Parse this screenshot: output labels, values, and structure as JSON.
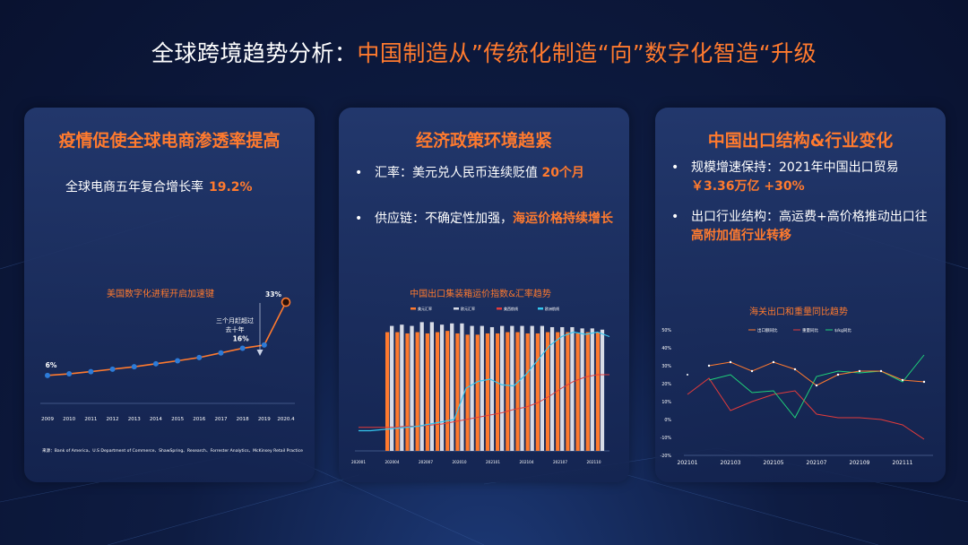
{
  "title": {
    "prefix": "全球跨境趋势分析：",
    "highlight": "中国制造从”传统化制造“向”数字化智造“升级"
  },
  "card1": {
    "heading": "疫情促使全球电商渗透率提高",
    "stat_label": "全球电商五年复合增长率",
    "stat_value": "19.2%",
    "chart_data": {
      "type": "line",
      "title": "美国数字化进程开启加速键",
      "categories": [
        "2009",
        "2010",
        "2011",
        "2012",
        "2013",
        "2014",
        "2015",
        "2016",
        "2017",
        "2018",
        "2019",
        "2020.4"
      ],
      "values": [
        6,
        6.6,
        7.4,
        8.3,
        9.2,
        10.3,
        11.4,
        12.6,
        14.3,
        16,
        17.2,
        33
      ],
      "start_label": "6%",
      "mid_label": "16%",
      "end_label": "33%",
      "annotation": [
        "三个月赶超过",
        "去十年"
      ],
      "source": "来源：Bank of America、U.S Department of Commerce、ShawSpring、Research、Forrester Analytics、McKinsey Retail Practice"
    }
  },
  "card2": {
    "heading": "经济政策环境趋紧",
    "b1_text": "汇率：美元兑人民币连续贬值 ",
    "b1_hl": "20个月",
    "b2_text": "供应链：不确定性加强，",
    "b2_hl": "海运价格持续增长",
    "chart_data": {
      "type": "bar",
      "title": "中国出口集装箱运价指数&汇率趋势",
      "legend": [
        "美元汇率",
        "欧元汇率",
        "美西航线",
        "欧洲航线"
      ],
      "x_ticks": [
        "202001",
        "202004",
        "202007",
        "202010",
        "202101",
        "202104",
        "202107",
        "202110"
      ],
      "bar_a": [
        95,
        95,
        94,
        95,
        94,
        95,
        96,
        94,
        93,
        93,
        94,
        94,
        95,
        95,
        94,
        94,
        95,
        95,
        95,
        94,
        95,
        95
      ],
      "bar_b": [
        100,
        101,
        100,
        103,
        103,
        101,
        102,
        102,
        100,
        100,
        99,
        100,
        100,
        100,
        100,
        100,
        99,
        99,
        99,
        98,
        98,
        97
      ],
      "line_a": [
        5,
        5,
        5,
        5,
        6,
        6,
        7,
        8,
        10,
        12,
        14,
        16,
        18,
        21,
        23,
        27,
        33,
        40,
        46,
        50,
        52,
        52
      ],
      "line_b": [
        2,
        2,
        3,
        4,
        5,
        6,
        8,
        10,
        12,
        40,
        46,
        48,
        43,
        42,
        52,
        65,
        78,
        86,
        90,
        88,
        90,
        86
      ]
    }
  },
  "card3": {
    "heading": "中国出口结构&行业变化",
    "b1_text": "规模增速保持：2021年中国出口贸易",
    "b1_hl": "￥3.36万亿 +30%",
    "b2_text": "出口行业结构：高运费+高价格推动出口往",
    "b2_hl": "高附加值行业转移",
    "chart_data": {
      "type": "line",
      "title": "海关出口和重量同比趋势",
      "legend": [
        "出口额同比",
        "重量同比",
        "$/kg同比"
      ],
      "y_ticks": [
        "50%",
        "40%",
        "30%",
        "20%",
        "10%",
        "0%",
        "-10%",
        "-20%"
      ],
      "x_ticks": [
        "202101",
        "202103",
        "202105",
        "202107",
        "202109",
        "202111"
      ],
      "s1": [
        null,
        30,
        32,
        27,
        32,
        28,
        19,
        25,
        27,
        27,
        22,
        21
      ],
      "s2": [
        14,
        23,
        5,
        10,
        14,
        16,
        3,
        1,
        1,
        0,
        -3,
        -11
      ],
      "s3": [
        null,
        22,
        25,
        15,
        16,
        1,
        24,
        27,
        26,
        27,
        21,
        36
      ],
      "s1_first_dot": 25
    }
  },
  "colors": {
    "orange": "#ff7a2e",
    "white": "#ffffff",
    "cyan": "#34c6ef",
    "red": "#e23b3b",
    "green": "#1fd37a",
    "blue": "#2d7bd8"
  }
}
